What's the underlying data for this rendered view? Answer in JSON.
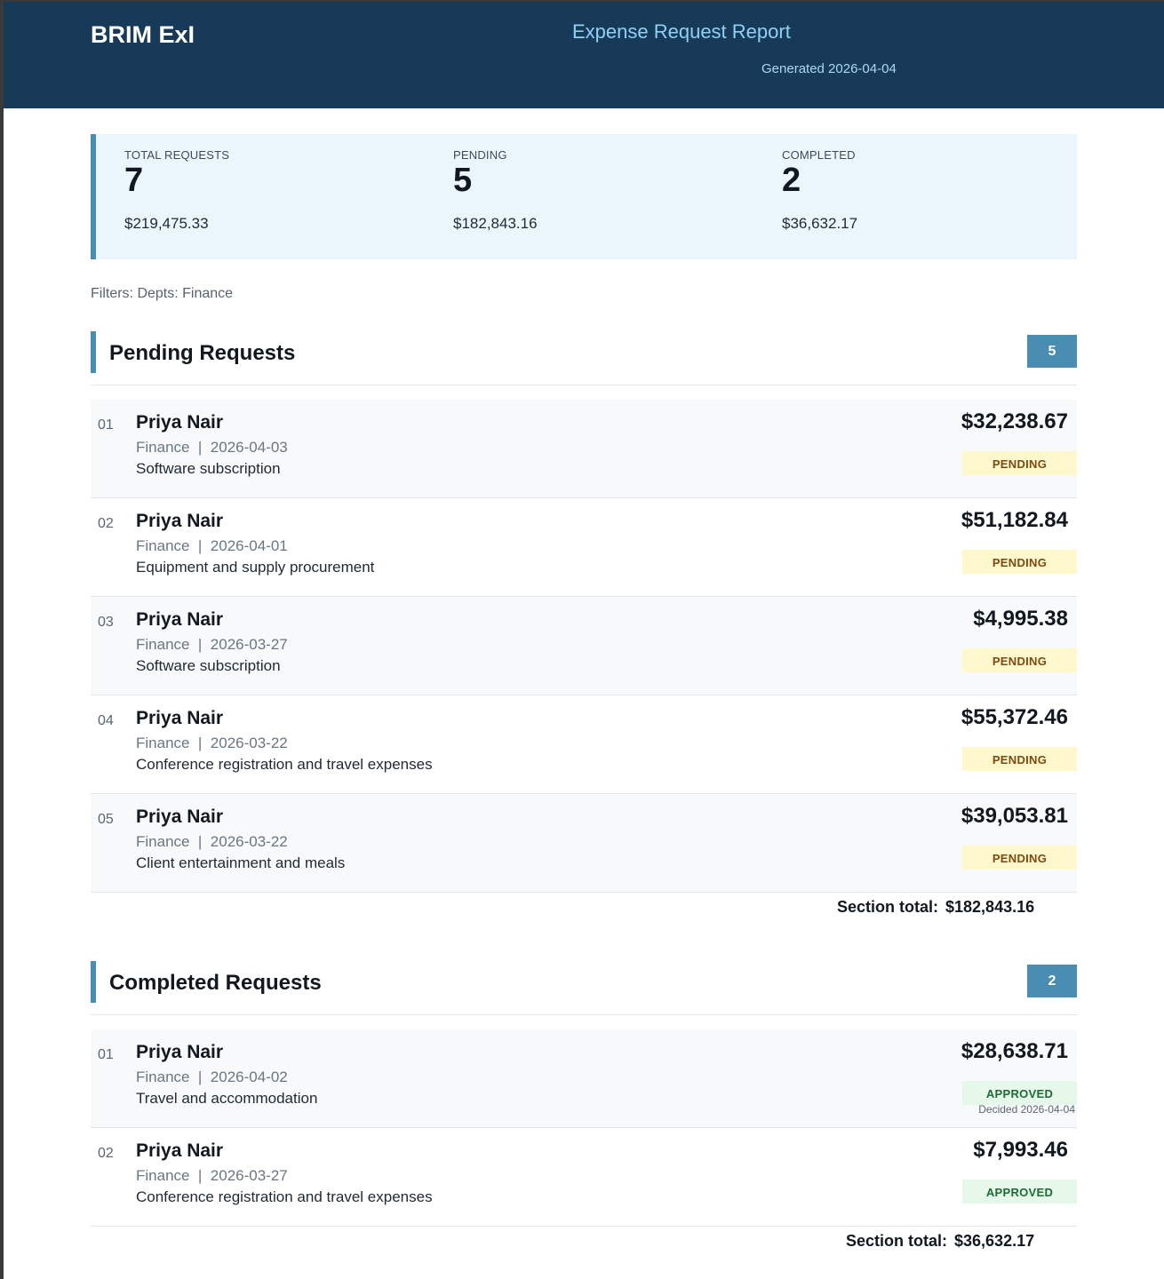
{
  "header": {
    "brand": "BRIM ExI",
    "title": "Expense Request Report",
    "generated": "Generated 2026-04-04"
  },
  "summary": {
    "total": {
      "label": "TOTAL REQUESTS",
      "count": "7",
      "amount": "$219,475.33"
    },
    "pending": {
      "label": "PENDING",
      "count": "5",
      "amount": "$182,843.16"
    },
    "completed": {
      "label": "COMPLETED",
      "count": "2",
      "amount": "$36,632.17"
    }
  },
  "filters": "Filters: Depts: Finance",
  "pending_section": {
    "title": "Pending Requests",
    "count": "5",
    "total_label": "Section total:",
    "total_value": "$182,843.16",
    "items": [
      {
        "index": "01",
        "name": "Priya Nair",
        "meta": "Finance  |  2026-04-03",
        "description": "Software subscription",
        "amount": "$32,238.67",
        "status": "PENDING"
      },
      {
        "index": "02",
        "name": "Priya Nair",
        "meta": "Finance  |  2026-04-01",
        "description": "Equipment and supply procurement",
        "amount": "$51,182.84",
        "status": "PENDING"
      },
      {
        "index": "03",
        "name": "Priya Nair",
        "meta": "Finance  |  2026-03-27",
        "description": "Software subscription",
        "amount": "$4,995.38",
        "status": "PENDING"
      },
      {
        "index": "04",
        "name": "Priya Nair",
        "meta": "Finance  |  2026-03-22",
        "description": "Conference registration and travel expenses",
        "amount": "$55,372.46",
        "status": "PENDING"
      },
      {
        "index": "05",
        "name": "Priya Nair",
        "meta": "Finance  |  2026-03-22",
        "description": "Client entertainment and meals",
        "amount": "$39,053.81",
        "status": "PENDING"
      }
    ]
  },
  "completed_section": {
    "title": "Completed Requests",
    "count": "2",
    "total_label": "Section total:",
    "total_value": "$36,632.17",
    "items": [
      {
        "index": "01",
        "name": "Priya Nair",
        "meta": "Finance  |  2026-04-02",
        "description": "Travel and accommodation",
        "amount": "$28,638.71",
        "status": "APPROVED",
        "decided": "Decided 2026-04-04"
      },
      {
        "index": "02",
        "name": "Priya Nair",
        "meta": "Finance  |  2026-03-27",
        "description": "Conference registration and travel expenses",
        "amount": "$7,993.46",
        "status": "APPROVED"
      }
    ]
  }
}
